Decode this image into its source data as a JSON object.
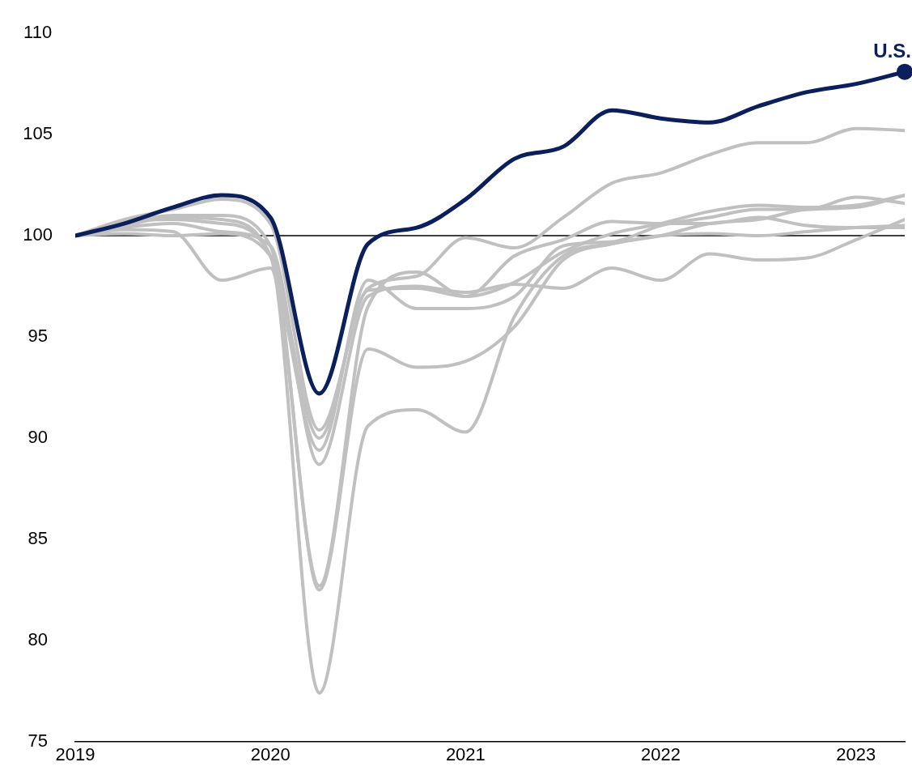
{
  "chart_data": {
    "type": "line",
    "x": [
      2019,
      2019.25,
      2019.5,
      2019.75,
      2020,
      2020.25,
      2020.5,
      2020.75,
      2021,
      2021.25,
      2021.5,
      2021.75,
      2022,
      2022.25,
      2022.5,
      2022.75,
      2023,
      2023.25
    ],
    "series": [
      {
        "color": "#c0c0c0",
        "values": [
          100,
          100.8,
          101.3,
          101.8,
          100.6,
          90.4,
          97.4,
          98.0,
          99.9,
          99.4,
          100.9,
          102.6,
          103.1,
          104.0,
          104.6,
          104.6,
          105.3,
          105.2
        ]
      },
      {
        "color": "#c0c0c0",
        "values": [
          100,
          100.3,
          100.2,
          97.8,
          98.4,
          82.5,
          94.4,
          93.5,
          93.8,
          95.5,
          98.8,
          99.6,
          100.0,
          100.6,
          100.8,
          101.3,
          101.4,
          102.0
        ]
      },
      {
        "color": "#c0c0c0",
        "values": [
          100,
          100.7,
          100.8,
          100.6,
          99.0,
          77.4,
          90.6,
          91.4,
          90.3,
          96.0,
          99.0,
          99.6,
          100.0,
          100.1,
          100.0,
          100.2,
          100.4,
          100.5
        ]
      },
      {
        "color": "#c0c0c0",
        "values": [
          100,
          100.4,
          100.6,
          100.2,
          99.5,
          88.7,
          97.0,
          97.5,
          97.2,
          97.6,
          97.4,
          98.4,
          97.8,
          99.1,
          98.8,
          98.9,
          99.8,
          100.8
        ]
      },
      {
        "color": "#c0c0c0",
        "values": [
          100,
          100.5,
          100.9,
          100.8,
          99.0,
          89.4,
          97.8,
          96.4,
          96.4,
          97.0,
          99.5,
          99.7,
          100.5,
          100.9,
          101.3,
          101.3,
          101.9,
          101.6
        ]
      },
      {
        "color": "#c0c0c0",
        "values": [
          100,
          100.6,
          101.0,
          101.0,
          99.5,
          82.7,
          96.5,
          98.2,
          97.0,
          99.0,
          99.8,
          100.7,
          100.6,
          100.6,
          100.9,
          100.5,
          100.4,
          100.4
        ]
      },
      {
        "color": "#c0c0c0",
        "values": [
          100,
          100.1,
          100.0,
          100.1,
          99.0,
          90.0,
          97.3,
          97.4,
          97.0,
          97.7,
          99.2,
          100.1,
          100.6,
          101.2,
          101.5,
          101.4,
          101.5,
          102.0
        ]
      },
      {
        "name": "U.S.",
        "color": "#0b1f5c",
        "values": [
          100,
          100.6,
          101.4,
          102.0,
          100.9,
          92.2,
          99.6,
          100.4,
          101.8,
          103.8,
          104.4,
          106.2,
          105.8,
          105.6,
          106.4,
          107.1,
          107.5,
          108.1
        ]
      }
    ],
    "xlim": [
      2019,
      2023.25
    ],
    "xticks": [
      2019,
      2020,
      2021,
      2022,
      2023
    ],
    "ylim": [
      75,
      110
    ],
    "yticks": [
      75,
      80,
      85,
      90,
      95,
      100,
      105,
      110
    ],
    "ref_lines": [
      {
        "axis": "y",
        "value": 100,
        "color": "#000000"
      }
    ],
    "grid": false,
    "legend": false,
    "line_style": "solid"
  }
}
